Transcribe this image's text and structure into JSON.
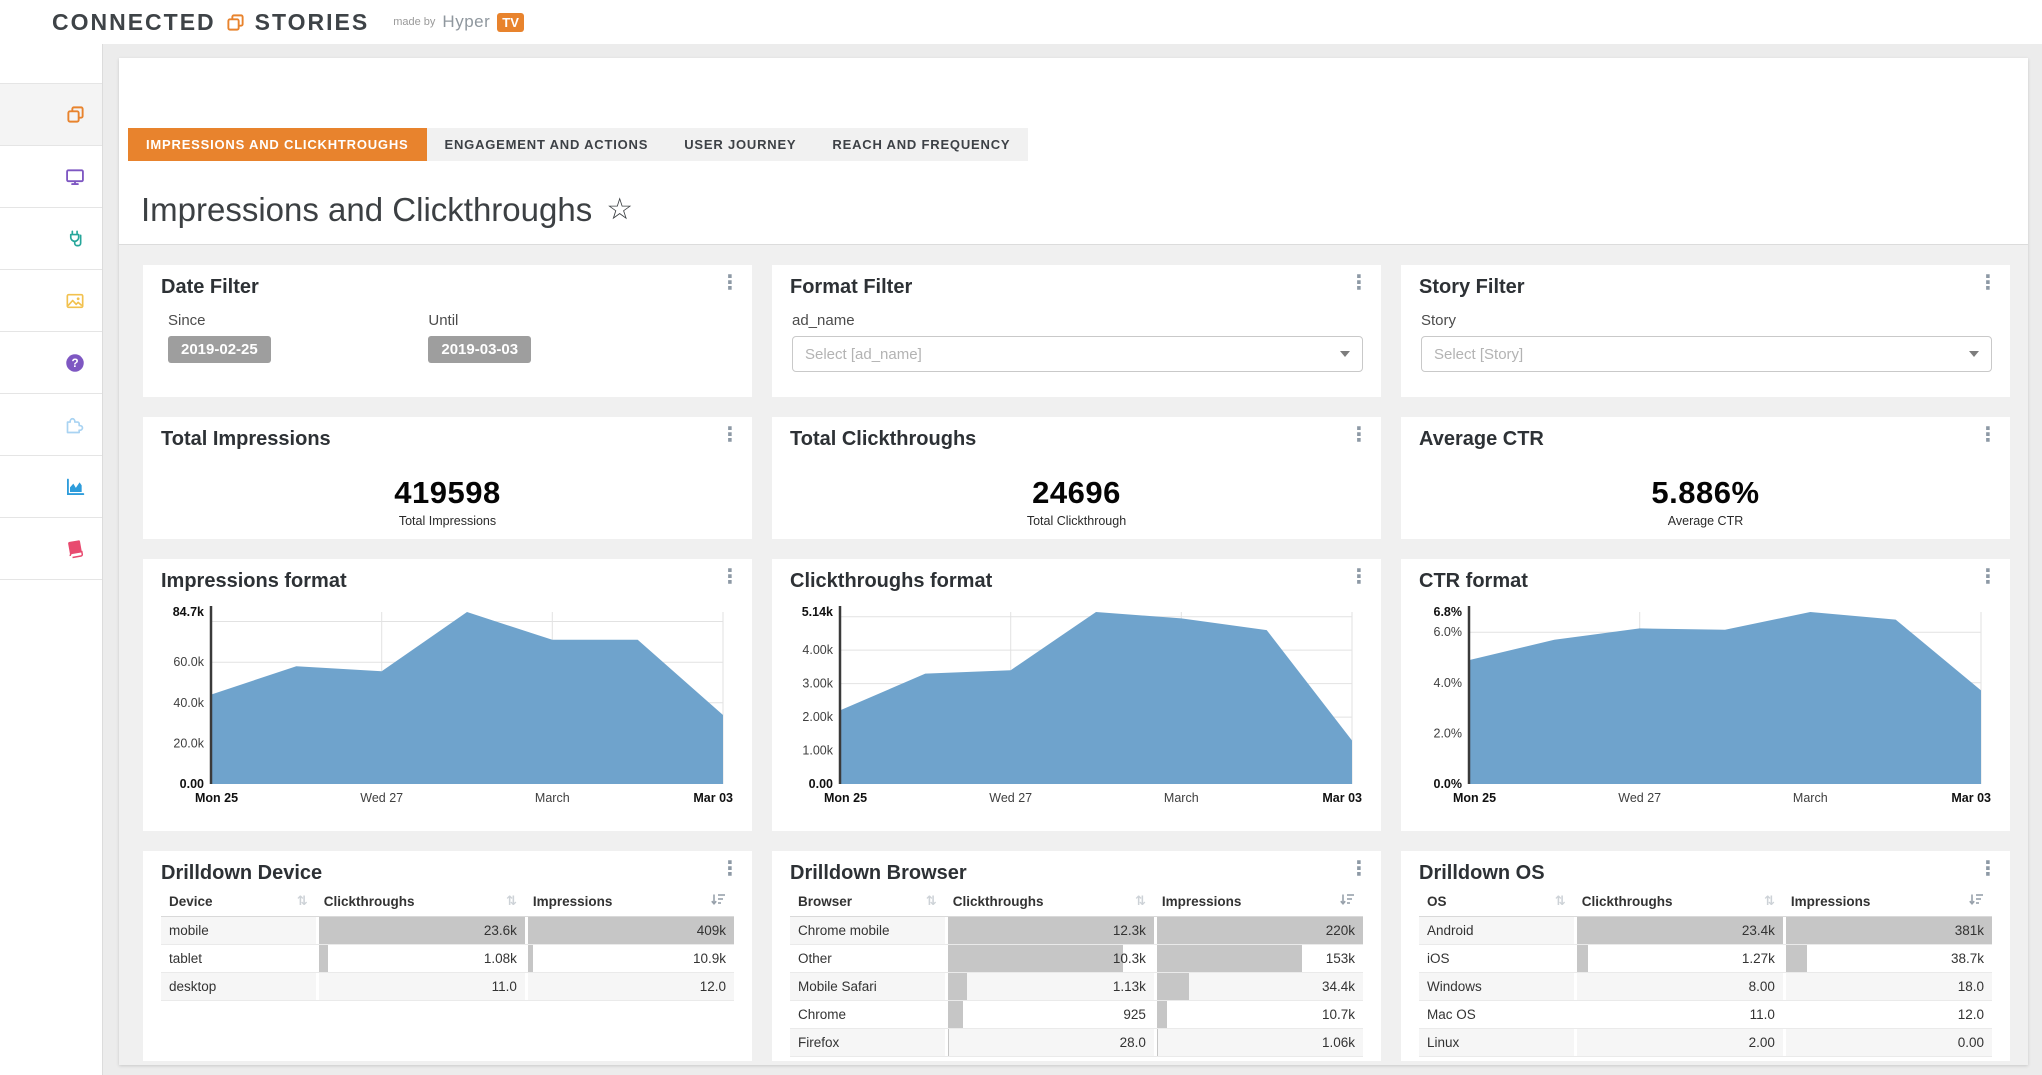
{
  "colors": {
    "accent": "#e8832d",
    "chart_fill": "#6fa3cc",
    "badge_gray": "#9e9e9e",
    "bar_gray": "#c6c6c6"
  },
  "header": {
    "brand_left": "CONNECTED",
    "brand_right": "STORIES",
    "made_by": "made by",
    "made_by_brand": "Hyper",
    "made_by_badge": "TV"
  },
  "sidebar": {
    "items": [
      {
        "icon": "stories-icon",
        "color": "#e8832d",
        "active": true
      },
      {
        "icon": "monitor-icon",
        "color": "#7e57c2",
        "active": false
      },
      {
        "icon": "plug-icon",
        "color": "#26a69a",
        "active": false
      },
      {
        "icon": "image-icon",
        "color": "#f2c14e",
        "active": false
      },
      {
        "icon": "help-icon",
        "color": "#7e57c2",
        "active": false
      },
      {
        "icon": "puzzle-icon",
        "color": "#a9d3f2",
        "active": false
      },
      {
        "icon": "analytics-icon",
        "color": "#2d9cdb",
        "active": false
      },
      {
        "icon": "book-icon",
        "color": "#e84a6f",
        "active": false
      }
    ]
  },
  "tabs": [
    {
      "label": "IMPRESSIONS AND CLICKHTROUGHS",
      "active": true
    },
    {
      "label": "ENGAGEMENT AND ACTIONS",
      "active": false
    },
    {
      "label": "USER JOURNEY",
      "active": false
    },
    {
      "label": "REACH AND FREQUENCY",
      "active": false
    }
  ],
  "page_title": "Impressions and Clickthroughs",
  "fav_star": "☆",
  "kebab": "⋮",
  "filters": {
    "date": {
      "title": "Date Filter",
      "since_label": "Since",
      "since_value": "2019-02-25",
      "until_label": "Until",
      "until_value": "2019-03-03"
    },
    "format": {
      "title": "Format Filter",
      "field_label": "ad_name",
      "placeholder": "Select [ad_name]"
    },
    "story": {
      "title": "Story Filter",
      "field_label": "Story",
      "placeholder": "Select [Story]"
    }
  },
  "kpis": [
    {
      "title": "Total Impressions",
      "value": "419598",
      "label": "Total Impressions"
    },
    {
      "title": "Total Clickthroughs",
      "value": "24696",
      "label": "Total Clickthrough"
    },
    {
      "title": "Average CTR",
      "value": "5.886%",
      "label": "Average CTR"
    }
  ],
  "chart_data": [
    {
      "type": "area",
      "title": "Impressions format",
      "x": [
        "Mon 25",
        "Tue 26",
        "Wed 27",
        "Thu 28",
        "Mar 01",
        "Mar 02",
        "Mar 03"
      ],
      "values": [
        44000,
        58000,
        55500,
        84700,
        71000,
        71000,
        34000
      ],
      "ylim": [
        0,
        84700
      ],
      "y_top": "84.7k",
      "y_bottom": "0.00",
      "yticks": [
        {
          "v": 80000
        },
        {
          "v": 60000,
          "label": "60.0k"
        },
        {
          "v": 40000,
          "label": "40.0k"
        },
        {
          "v": 20000,
          "label": "20.0k"
        }
      ],
      "x_ticks": [
        {
          "i": 0,
          "label": "Mon 25",
          "bold": true
        },
        {
          "i": 2,
          "label": "Wed 27",
          "grid": true
        },
        {
          "i": 4,
          "label": "March",
          "grid": true
        },
        {
          "i": 6,
          "label": "Mar 03",
          "bold": true,
          "grid": true
        }
      ],
      "legend": "none",
      "grid": true
    },
    {
      "type": "area",
      "title": "Clickthroughs format",
      "x": [
        "Mon 25",
        "Tue 26",
        "Wed 27",
        "Thu 28",
        "Mar 01",
        "Mar 02",
        "Mar 03"
      ],
      "values": [
        2200,
        3300,
        3400,
        5140,
        4950,
        4600,
        1300
      ],
      "ylim": [
        0,
        5140
      ],
      "y_top": "5.14k",
      "y_bottom": "0.00",
      "yticks": [
        {
          "v": 5000
        },
        {
          "v": 4000,
          "label": "4.00k"
        },
        {
          "v": 3000,
          "label": "3.00k"
        },
        {
          "v": 2000,
          "label": "2.00k"
        },
        {
          "v": 1000,
          "label": "1.00k"
        }
      ],
      "x_ticks": [
        {
          "i": 0,
          "label": "Mon 25",
          "bold": true
        },
        {
          "i": 2,
          "label": "Wed 27",
          "grid": true
        },
        {
          "i": 4,
          "label": "March",
          "grid": true
        },
        {
          "i": 6,
          "label": "Mar 03",
          "bold": true,
          "grid": true
        }
      ],
      "legend": "none",
      "grid": true
    },
    {
      "type": "area",
      "title": "CTR format",
      "x": [
        "Mon 25",
        "Tue 26",
        "Wed 27",
        "Thu 28",
        "Mar 01",
        "Mar 02",
        "Mar 03"
      ],
      "values": [
        4.9,
        5.7,
        6.15,
        6.1,
        6.8,
        6.5,
        3.7
      ],
      "ylim": [
        0,
        6.8
      ],
      "y_top": "6.8%",
      "y_bottom": "0.0%",
      "yticks": [
        {
          "v": 6,
          "label": "6.0%"
        },
        {
          "v": 4,
          "label": "4.0%"
        },
        {
          "v": 2,
          "label": "2.0%"
        }
      ],
      "x_ticks": [
        {
          "i": 0,
          "label": "Mon 25",
          "bold": true
        },
        {
          "i": 2,
          "label": "Wed 27",
          "grid": true
        },
        {
          "i": 4,
          "label": "March",
          "grid": true
        },
        {
          "i": 6,
          "label": "Mar 03",
          "bold": true,
          "grid": true
        }
      ],
      "legend": "none",
      "grid": true
    }
  ],
  "tables": [
    {
      "title": "Drilldown Device",
      "columns": [
        {
          "label": "Device",
          "sort": "unsorted"
        },
        {
          "label": "Clickthroughs",
          "sort": "unsorted"
        },
        {
          "label": "Impressions",
          "sort": "desc"
        }
      ],
      "rows": [
        {
          "name": "mobile",
          "values": [
            "23.6k",
            "409k"
          ],
          "bars": [
            1,
            1
          ]
        },
        {
          "name": "tablet",
          "values": [
            "1.08k",
            "10.9k"
          ],
          "bars": [
            0.046,
            0.027
          ]
        },
        {
          "name": "desktop",
          "values": [
            "11.0",
            "12.0"
          ],
          "bars": [
            0,
            0
          ]
        }
      ]
    },
    {
      "title": "Drilldown Browser",
      "columns": [
        {
          "label": "Browser",
          "sort": "unsorted"
        },
        {
          "label": "Clickthroughs",
          "sort": "unsorted"
        },
        {
          "label": "Impressions",
          "sort": "desc"
        }
      ],
      "rows": [
        {
          "name": "Chrome mobile",
          "values": [
            "12.3k",
            "220k"
          ],
          "bars": [
            1,
            1
          ]
        },
        {
          "name": "Other",
          "values": [
            "10.3k",
            "153k"
          ],
          "bars": [
            0.837,
            0.695
          ]
        },
        {
          "name": "Mobile Safari",
          "values": [
            "1.13k",
            "34.4k"
          ],
          "bars": [
            0.092,
            0.156
          ]
        },
        {
          "name": "Chrome",
          "values": [
            "925",
            "10.7k"
          ],
          "bars": [
            0.075,
            0.049
          ]
        },
        {
          "name": "Firefox",
          "values": [
            "28.0",
            "1.06k"
          ],
          "bars": [
            0.002,
            0.005
          ]
        }
      ]
    },
    {
      "title": "Drilldown OS",
      "columns": [
        {
          "label": "OS",
          "sort": "unsorted"
        },
        {
          "label": "Clickthroughs",
          "sort": "unsorted"
        },
        {
          "label": "Impressions",
          "sort": "desc"
        }
      ],
      "rows": [
        {
          "name": "Android",
          "values": [
            "23.4k",
            "381k"
          ],
          "bars": [
            1,
            1
          ]
        },
        {
          "name": "iOS",
          "values": [
            "1.27k",
            "38.7k"
          ],
          "bars": [
            0.054,
            0.102
          ]
        },
        {
          "name": "Windows",
          "values": [
            "8.00",
            "18.0"
          ],
          "bars": [
            0,
            0
          ]
        },
        {
          "name": "Mac OS",
          "values": [
            "11.0",
            "12.0"
          ],
          "bars": [
            0,
            0
          ]
        },
        {
          "name": "Linux",
          "values": [
            "2.00",
            "0.00"
          ],
          "bars": [
            0,
            0
          ]
        }
      ]
    }
  ]
}
